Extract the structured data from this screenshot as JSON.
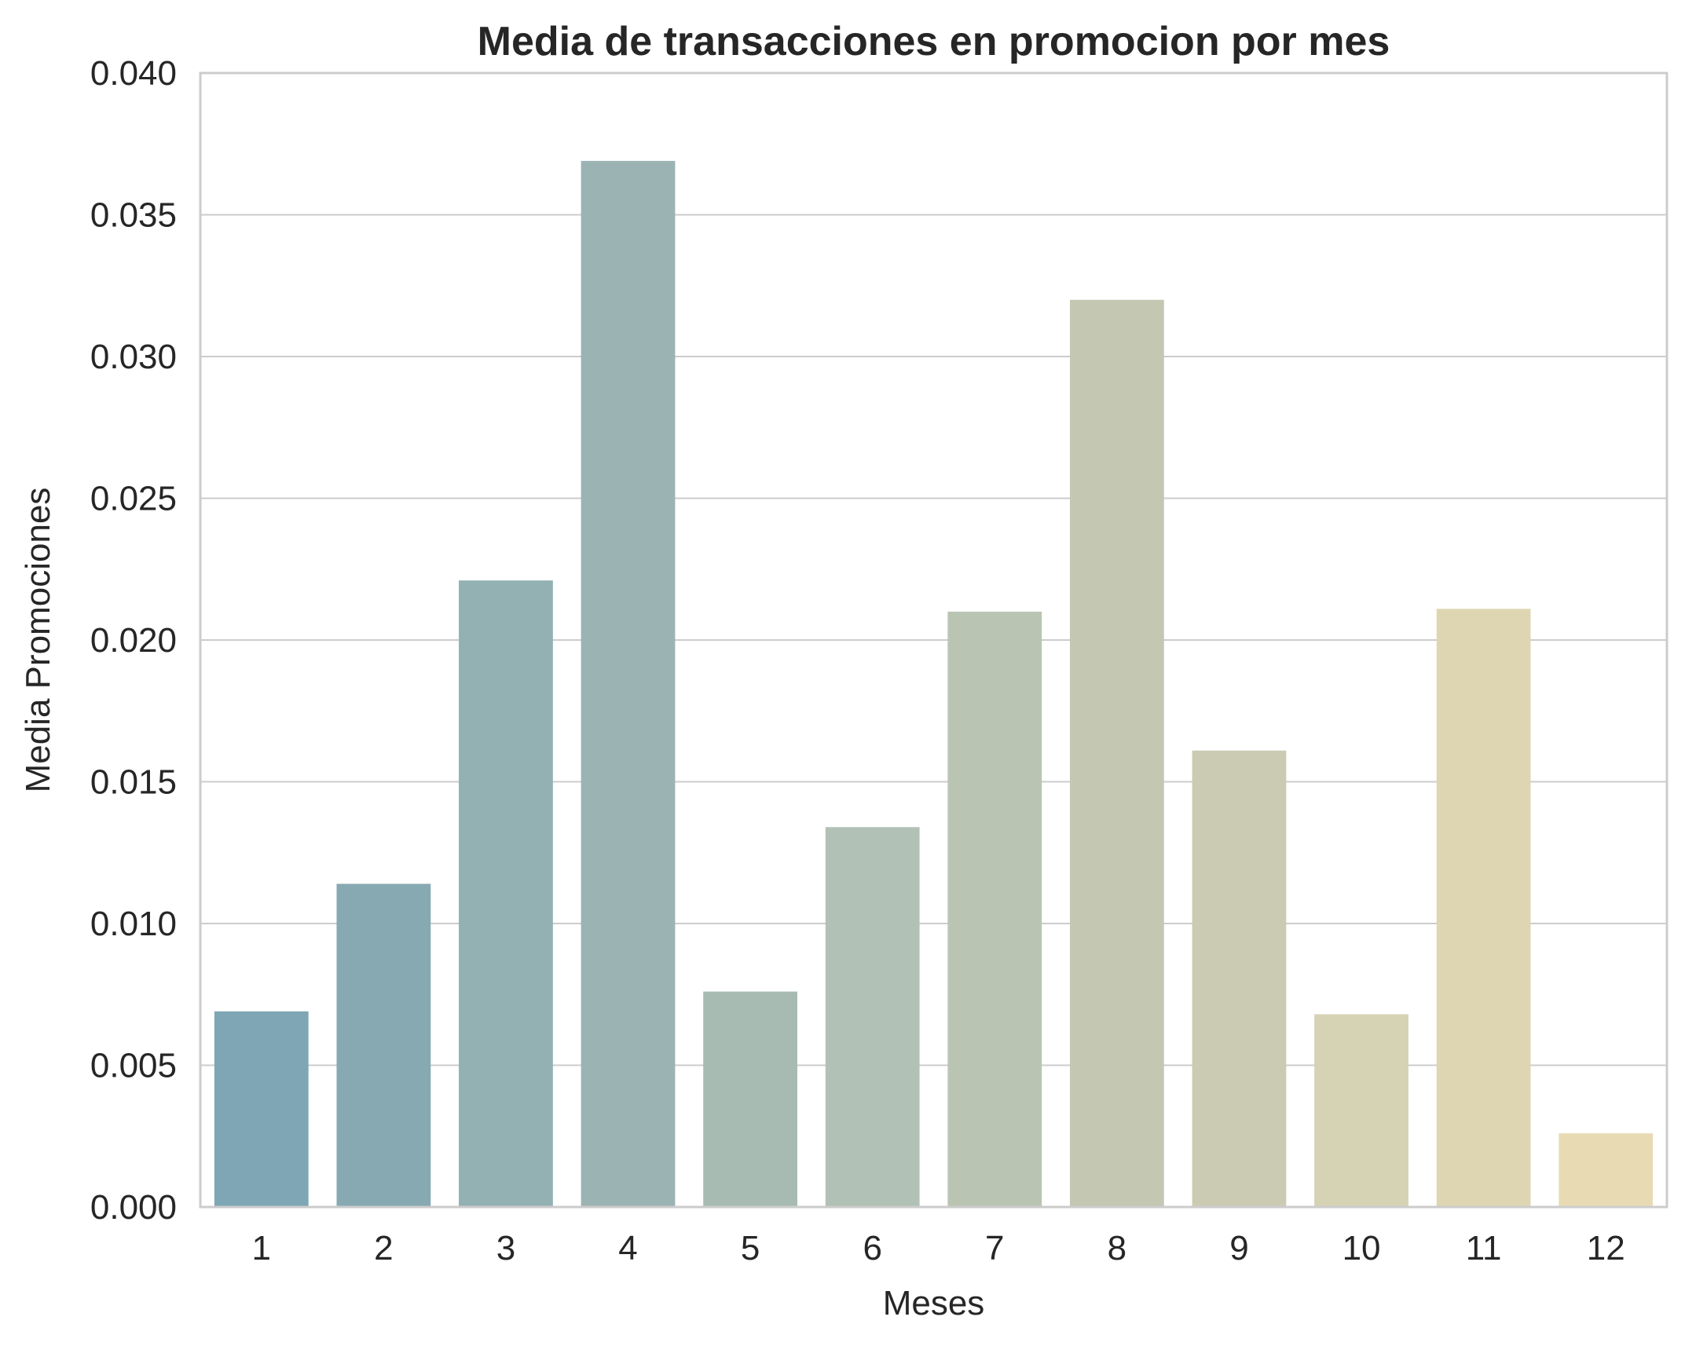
{
  "chart_data": {
    "type": "bar",
    "title": "Media de transacciones en promocion por mes",
    "xlabel": "Meses",
    "ylabel": "Media Promociones",
    "categories": [
      "1",
      "2",
      "3",
      "4",
      "5",
      "6",
      "7",
      "8",
      "9",
      "10",
      "11",
      "12"
    ],
    "values": [
      0.0069,
      0.0114,
      0.0221,
      0.0369,
      0.0076,
      0.0134,
      0.021,
      0.032,
      0.0161,
      0.0068,
      0.0211,
      0.0026
    ],
    "ylim": [
      0,
      0.04
    ],
    "yticks": [
      "0.000",
      "0.005",
      "0.010",
      "0.015",
      "0.020",
      "0.025",
      "0.030",
      "0.035",
      "0.040"
    ],
    "colors": [
      "#7ea6b5",
      "#87a9b2",
      "#93b0b3",
      "#9cb3b4",
      "#a8bbb3",
      "#b1c1b5",
      "#bac4b2",
      "#c4c8b3",
      "#cbcbb3",
      "#d5d3b4",
      "#ded6b3",
      "#e8dbb3"
    ],
    "grid": true,
    "grid_axis": "y",
    "legend": false
  }
}
